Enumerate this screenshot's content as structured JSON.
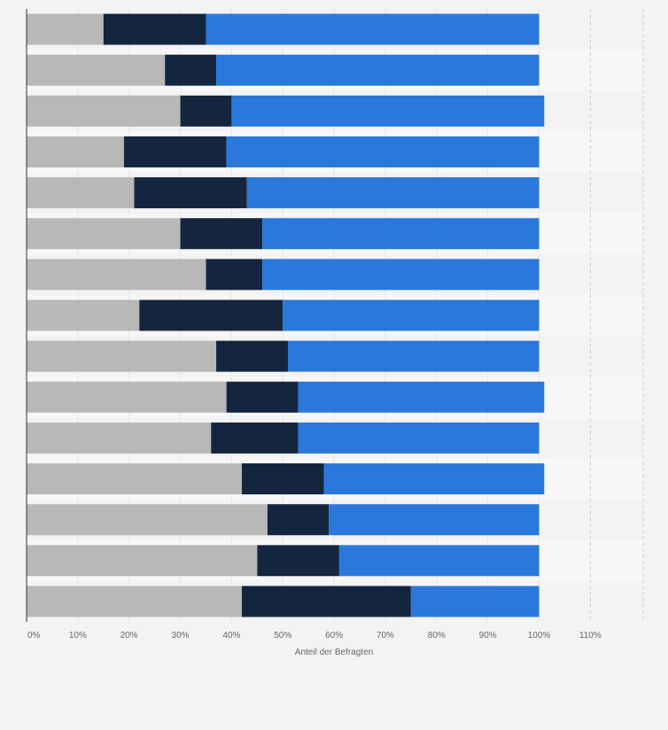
{
  "chart_data": {
    "type": "bar",
    "orientation": "horizontal",
    "stacked": true,
    "categories": [
      "",
      "",
      "",
      "",
      "",
      "",
      "",
      "",
      "",
      "",
      "",
      "",
      "",
      "",
      ""
    ],
    "series": [
      {
        "color": "#b8b8b8",
        "values": [
          15,
          27,
          30,
          19,
          21,
          30,
          35,
          22,
          37,
          39,
          36,
          42,
          47,
          45,
          42
        ]
      },
      {
        "color": "#14263f",
        "values": [
          20,
          10,
          10,
          20,
          22,
          16,
          11,
          28,
          14,
          14,
          17,
          16,
          12,
          16,
          33
        ]
      },
      {
        "color": "#2a78dc",
        "values": [
          65,
          63,
          61,
          61,
          57,
          54,
          54,
          50,
          49,
          48,
          47,
          43,
          41,
          39,
          25
        ]
      }
    ],
    "xlabel": "Anteil der Befragten",
    "ylabel": "",
    "xlim": [
      0,
      120
    ],
    "xticks": [
      0,
      10,
      20,
      30,
      40,
      50,
      60,
      70,
      80,
      90,
      100,
      110
    ],
    "xtick_labels": [
      "0%",
      "10%",
      "20%",
      "30%",
      "40%",
      "50%",
      "60%",
      "70%",
      "80%",
      "90%",
      "100%",
      "110%"
    ],
    "grid": true,
    "legend": "none"
  }
}
